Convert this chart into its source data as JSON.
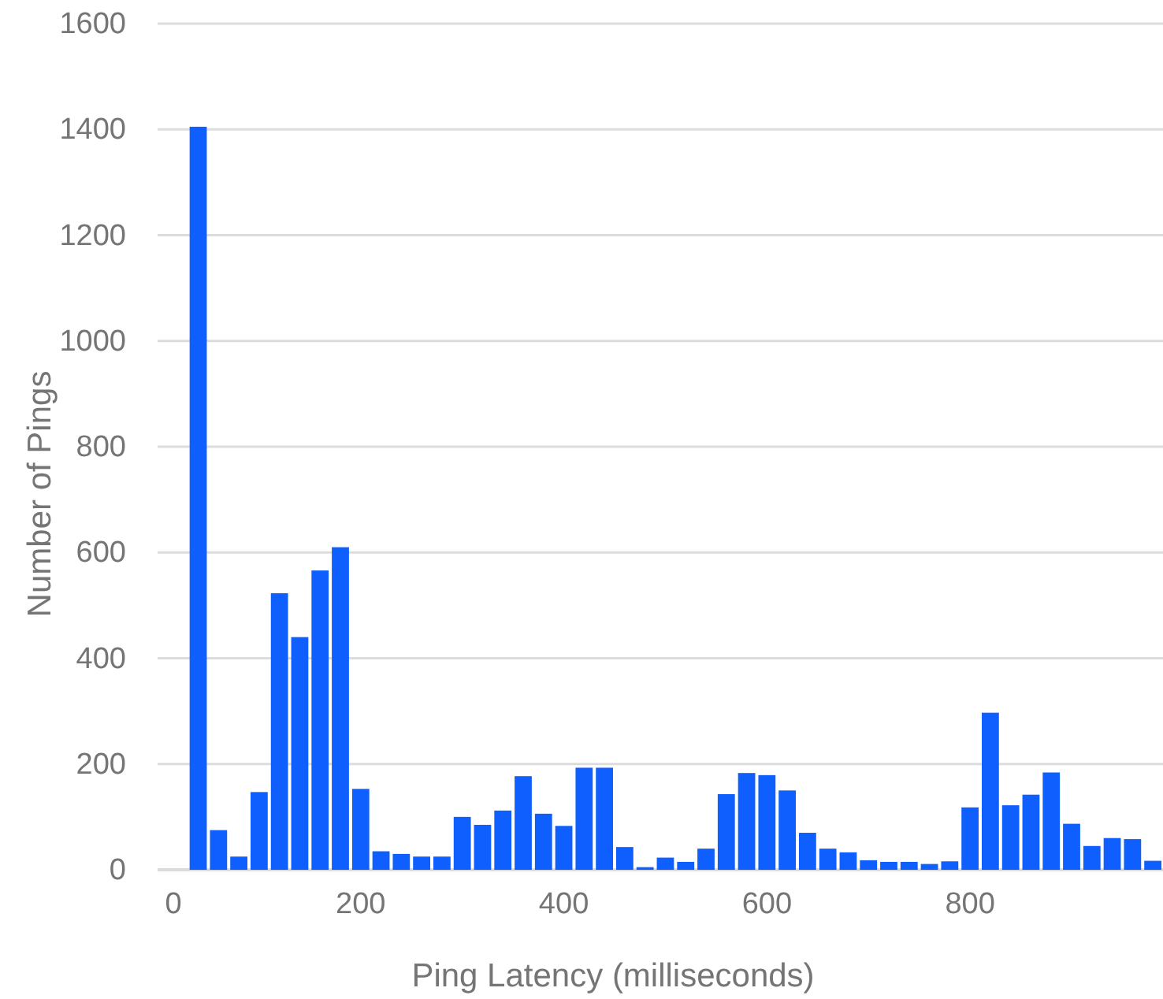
{
  "chart_data": {
    "type": "histogram",
    "xlabel": "Ping Latency (milliseconds)",
    "ylabel": "Number of Pings",
    "bins": [
      30,
      50,
      70,
      90,
      110,
      130,
      150,
      170,
      190,
      210,
      230,
      250,
      270,
      290,
      310,
      330,
      350,
      370,
      390,
      410,
      430,
      450,
      470,
      490,
      510,
      530,
      550,
      570,
      590,
      610,
      630,
      650,
      670,
      690,
      710,
      730,
      750,
      770,
      790,
      810,
      830,
      850,
      870,
      890,
      910,
      930,
      950,
      970,
      990
    ],
    "values": [
      1405,
      75,
      25,
      147,
      523,
      440,
      566,
      610,
      153,
      35,
      30,
      25,
      25,
      100,
      85,
      112,
      177,
      106,
      83,
      193,
      193,
      43,
      5,
      23,
      15,
      40,
      143,
      183,
      179,
      150,
      70,
      40,
      33,
      18,
      15,
      15,
      11,
      16,
      118,
      297,
      122,
      142,
      184,
      87,
      45,
      60,
      58,
      17
    ],
    "color": "#0f5fff",
    "xlim": [
      0,
      990
    ],
    "xticks": [
      0,
      200,
      400,
      600,
      800
    ],
    "ylim": [
      0,
      1600
    ],
    "yticks": [
      0,
      200,
      400,
      600,
      800,
      1000,
      1200,
      1400,
      1600
    ],
    "grid": "y"
  }
}
